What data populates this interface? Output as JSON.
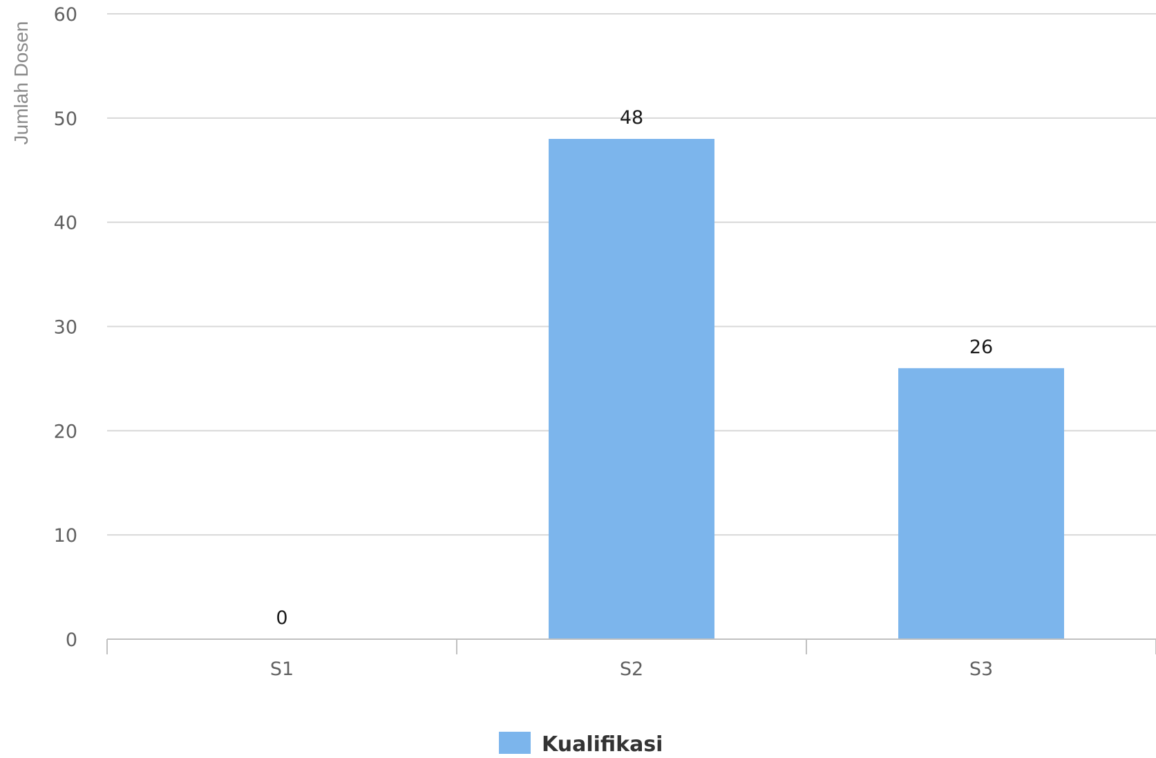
{
  "chart_data": {
    "type": "bar",
    "title": "",
    "xlabel": "",
    "ylabel": "Jumlah Dosen",
    "categories": [
      "S1",
      "S2",
      "S3"
    ],
    "series": [
      {
        "name": "Kualifikasi",
        "values": [
          0,
          48,
          26
        ],
        "color": "#7cb5ec"
      }
    ],
    "ylim": [
      0,
      60
    ],
    "yticks": [
      "0",
      "10",
      "20",
      "30",
      "40",
      "50",
      "60"
    ],
    "data_labels": [
      "0",
      "48",
      "26"
    ],
    "grid": true,
    "legend": "bottom-center"
  }
}
